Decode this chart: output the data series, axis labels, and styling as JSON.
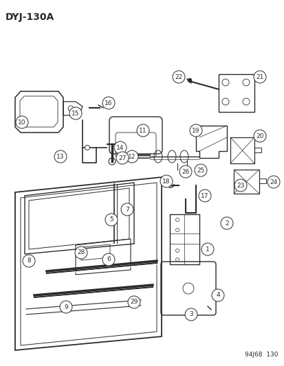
{
  "title": "DYJ-130A",
  "footer": "94J68  130",
  "bg_color": "#ffffff",
  "line_color": "#2a2a2a",
  "title_fontsize": 10,
  "footer_fontsize": 6.5,
  "label_fontsize": 6.5,
  "fig_width": 4.14,
  "fig_height": 5.33,
  "dpi": 100
}
